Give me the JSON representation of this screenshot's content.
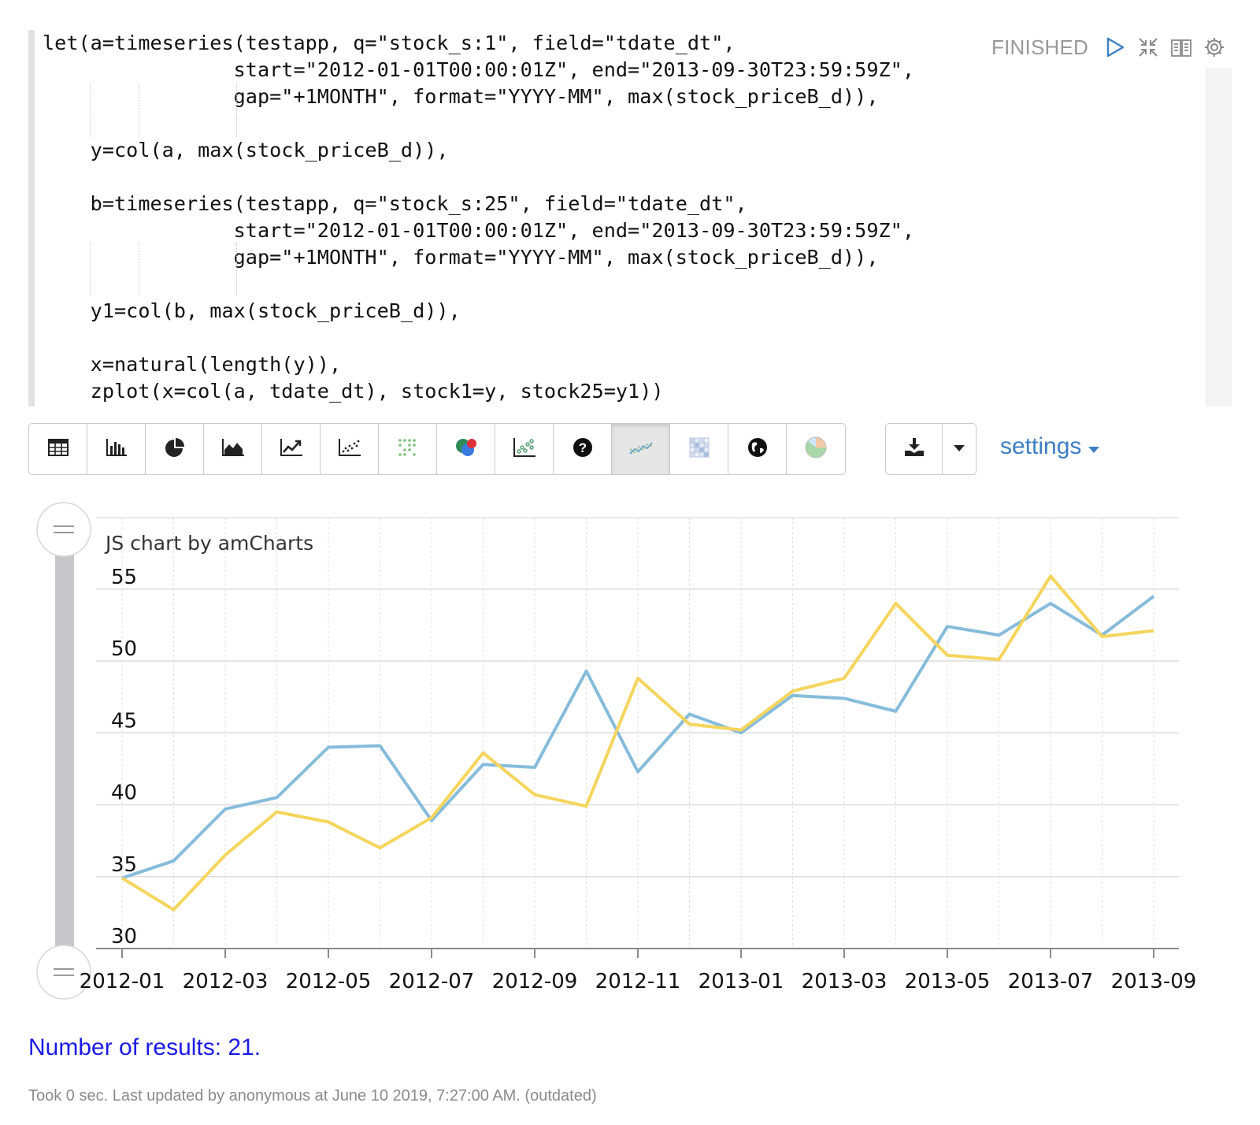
{
  "paragraph": {
    "code_lines": [
      "let(a=timeseries(testapp, q=\"stock_s:1\", field=\"tdate_dt\",",
      "                start=\"2012-01-01T00:00:01Z\", end=\"2013-09-30T23:59:59Z\",",
      "                gap=\"+1MONTH\", format=\"YYYY-MM\", max(stock_priceB_d)),",
      "",
      "    y=col(a, max(stock_priceB_d)),",
      "",
      "    b=timeseries(testapp, q=\"stock_s:25\", field=\"tdate_dt\",",
      "                start=\"2012-01-01T00:00:01Z\", end=\"2013-09-30T23:59:59Z\",",
      "                gap=\"+1MONTH\", format=\"YYYY-MM\", max(stock_priceB_d)),",
      "",
      "    y1=col(b, max(stock_priceB_d)),",
      "",
      "    x=natural(length(y)),",
      "    zplot(x=col(a, tdate_dt), stock1=y, stock25=y1))"
    ],
    "status": "FINISHED",
    "controls": [
      "run-icon",
      "collapse-icon",
      "book-icon",
      "gear-icon"
    ]
  },
  "toolbar": {
    "buttons": [
      {
        "name": "table-icon"
      },
      {
        "name": "bar-chart-icon"
      },
      {
        "name": "pie-chart-icon"
      },
      {
        "name": "area-chart-icon"
      },
      {
        "name": "line-chart-icon"
      },
      {
        "name": "scatter-chart-icon"
      },
      {
        "name": "dot-matrix-icon"
      },
      {
        "name": "bubble-chart-icon"
      },
      {
        "name": "scatter-colored-icon"
      },
      {
        "name": "help-icon"
      },
      {
        "name": "multi-line-chart-icon",
        "active": true
      },
      {
        "name": "heatmap-icon"
      },
      {
        "name": "globe-icon"
      },
      {
        "name": "color-pie-icon"
      }
    ],
    "download_icon": "download-icon",
    "caret_icon": "caret-down-icon",
    "settings_label": "settings"
  },
  "chart_data": {
    "type": "line",
    "watermark": "JS chart by amCharts",
    "x": [
      "2012-01",
      "2012-02",
      "2012-03",
      "2012-04",
      "2012-05",
      "2012-06",
      "2012-07",
      "2012-08",
      "2012-09",
      "2012-10",
      "2012-11",
      "2012-12",
      "2013-01",
      "2013-02",
      "2013-03",
      "2013-04",
      "2013-05",
      "2013-06",
      "2013-07",
      "2013-08",
      "2013-09"
    ],
    "x_tick_labels": [
      "2012-01",
      "2012-03",
      "2012-05",
      "2012-07",
      "2012-09",
      "2012-11",
      "2013-01",
      "2013-03",
      "2013-05",
      "2013-07",
      "2013-09"
    ],
    "y_ticks": [
      30,
      35,
      40,
      45,
      50,
      55
    ],
    "ylim": [
      30,
      56.5
    ],
    "grid": true,
    "series": [
      {
        "color": "#86bcdb",
        "values": [
          34.9,
          36.1,
          39.7,
          40.5,
          44.0,
          44.1,
          38.9,
          42.8,
          42.6,
          49.3,
          42.3,
          46.3,
          45.0,
          47.6,
          47.4,
          46.5,
          52.4,
          51.8,
          54.0,
          51.8,
          54.5
        ]
      },
      {
        "color": "#f5d55c",
        "values": [
          34.9,
          32.7,
          36.5,
          39.5,
          38.8,
          37.0,
          39.1,
          43.6,
          40.7,
          39.9,
          48.8,
          45.6,
          45.2,
          47.9,
          48.8,
          54.0,
          50.4,
          50.1,
          55.9,
          51.7,
          52.1
        ]
      }
    ]
  },
  "results_count": "Number of results: 21.",
  "footer_status": "Took 0 sec. Last updated by anonymous at June 10 2019, 7:27:00 AM. (outdated)"
}
